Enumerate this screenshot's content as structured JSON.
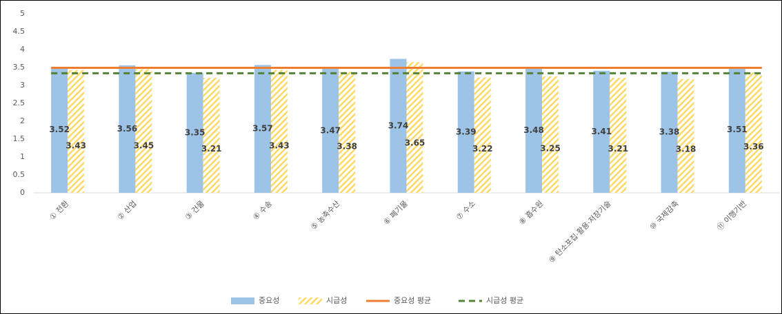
{
  "chart_data": {
    "type": "bar",
    "categories": [
      "① 전환",
      "② 산업",
      "③ 건물",
      "④ 수송",
      "⑤ 농축수산",
      "⑥ 폐기물",
      "⑦ 수소",
      "⑧ 흡수원",
      "⑨ 탄소포집·활용·저장기술",
      "⑩ 국제감축",
      "⑪ 이행기반"
    ],
    "series": [
      {
        "name": "중요성",
        "type": "bar",
        "color": "#9dc3e6",
        "values": [
          3.52,
          3.56,
          3.35,
          3.57,
          3.47,
          3.74,
          3.39,
          3.48,
          3.41,
          3.38,
          3.51
        ]
      },
      {
        "name": "시급성",
        "type": "bar",
        "color": "#ffd966",
        "pattern": "hatch",
        "values": [
          3.43,
          3.45,
          3.21,
          3.43,
          3.38,
          3.65,
          3.22,
          3.25,
          3.21,
          3.18,
          3.36
        ]
      },
      {
        "name": "중요성 평균",
        "type": "line",
        "color": "#ed7d31",
        "values": [
          3.49,
          3.49,
          3.49,
          3.49,
          3.49,
          3.49,
          3.49,
          3.49,
          3.49,
          3.49,
          3.49
        ]
      },
      {
        "name": "시급성 평균",
        "type": "line",
        "color": "#548235",
        "dash": true,
        "values": [
          3.34,
          3.34,
          3.34,
          3.34,
          3.34,
          3.34,
          3.34,
          3.34,
          3.34,
          3.34,
          3.34
        ]
      }
    ],
    "ylim": [
      0,
      5
    ],
    "yticks": [
      0,
      0.5,
      1,
      1.5,
      2,
      2.5,
      3,
      3.5,
      4,
      4.5,
      5
    ],
    "grid": false,
    "legend": "bottom"
  }
}
